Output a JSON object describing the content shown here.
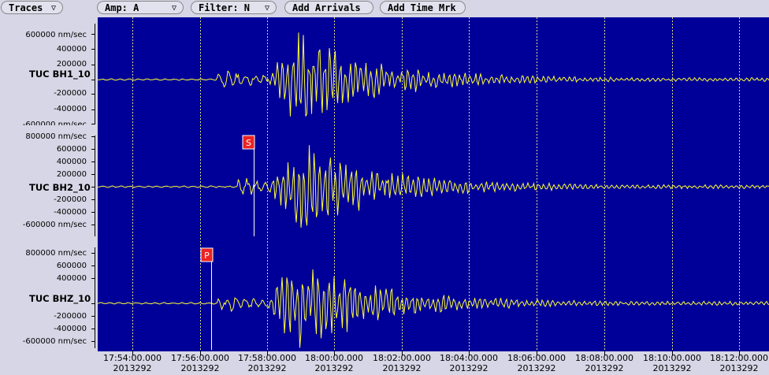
{
  "toolbar": {
    "traces": {
      "label": "Traces",
      "icon": "dropdown-icon"
    },
    "amp": {
      "label": "Amp: A",
      "icon": "dropdown-icon"
    },
    "filter": {
      "label": "Filter: N",
      "icon": "dropdown-icon"
    },
    "add_arrivals": "Add Arrivals",
    "add_time_mark": "Add Time Mrk"
  },
  "colors": {
    "plot_bg": "#000099",
    "trace": "#ffff33",
    "grid": "#dddd88",
    "marker": "#ee2222"
  },
  "channels": [
    {
      "label": "TUC BH1_10",
      "ticks": [
        "600000 nm/sec",
        "400000",
        "200000",
        "-200000",
        "-400000",
        "-600000 nm/sec"
      ]
    },
    {
      "label": "TUC BH2_10",
      "ticks": [
        "800000 nm/sec",
        "600000",
        "400000",
        "200000",
        "-200000",
        "-400000",
        "-600000 nm/sec"
      ]
    },
    {
      "label": "TUC BHZ_10",
      "ticks": [
        "800000 nm/sec",
        "600000",
        "400000",
        "-200000",
        "-400000",
        "-600000 nm/sec"
      ]
    }
  ],
  "picks": [
    {
      "phase": "S",
      "channel": "TUC BH2_10"
    },
    {
      "phase": "P",
      "channel": "TUC BHZ_10"
    }
  ],
  "time_axis": [
    {
      "time": "17:54:00.000",
      "day": "2013292"
    },
    {
      "time": "17:56:00.000",
      "day": "2013292"
    },
    {
      "time": "17:58:00.000",
      "day": "2013292"
    },
    {
      "time": "18:00:00.000",
      "day": "2013292"
    },
    {
      "time": "18:02:00.000",
      "day": "2013292"
    },
    {
      "time": "18:04:00.000",
      "day": "2013292"
    },
    {
      "time": "18:06:00.000",
      "day": "2013292"
    },
    {
      "time": "18:08:00.000",
      "day": "2013292"
    },
    {
      "time": "18:10:00.000",
      "day": "2013292"
    },
    {
      "time": "18:12:00.000",
      "day": "2013292"
    }
  ]
}
